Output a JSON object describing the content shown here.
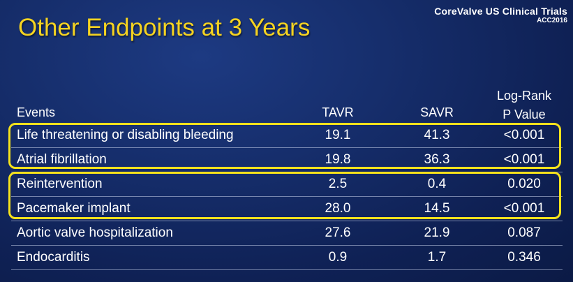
{
  "slide": {
    "title": "Other Endpoints at 3 Years",
    "brand_name": "CoreValve US Clinical Trials",
    "brand_conference": "ACC2016"
  },
  "table": {
    "headers": {
      "events": "Events",
      "tavr": "TAVR",
      "savr": "SAVR",
      "pvalue_line1": "Log-Rank",
      "pvalue_line2": "P Value"
    },
    "rows": [
      {
        "event": "Life threatening or disabling bleeding",
        "tavr": "19.1",
        "savr": "41.3",
        "pvalue": "<0.001",
        "highlighted": true
      },
      {
        "event": "Atrial fibrillation",
        "tavr": "19.8",
        "savr": "36.3",
        "pvalue": "<0.001",
        "highlighted": true
      },
      {
        "event": "Reintervention",
        "tavr": "2.5",
        "savr": "0.4",
        "pvalue": "0.020",
        "highlighted": true
      },
      {
        "event": "Pacemaker implant",
        "tavr": "28.0",
        "savr": "14.5",
        "pvalue": "<0.001",
        "highlighted": true
      },
      {
        "event": "Aortic valve hospitalization",
        "tavr": "27.6",
        "savr": "21.9",
        "pvalue": "0.087",
        "highlighted": false
      },
      {
        "event": "Endocarditis",
        "tavr": "0.9",
        "savr": "1.7",
        "pvalue": "0.346",
        "highlighted": false
      }
    ]
  },
  "colors": {
    "title": "#f5d321",
    "highlight": "#f5e21c",
    "background": "#162e6c"
  }
}
